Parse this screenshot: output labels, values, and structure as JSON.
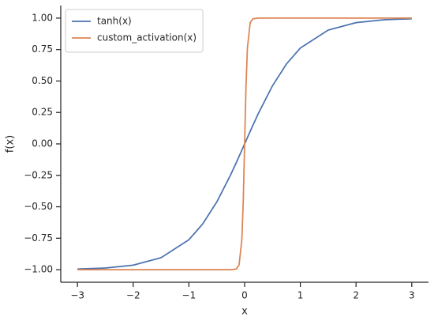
{
  "chart_data": {
    "type": "line",
    "x": [
      -3,
      -2.5,
      -2,
      -1.5,
      -1,
      -0.75,
      -0.5,
      -0.25,
      -0.15,
      -0.1,
      -0.05,
      -0.025,
      0,
      0.025,
      0.05,
      0.1,
      0.15,
      0.25,
      0.5,
      0.75,
      1,
      1.5,
      2,
      2.5,
      3
    ],
    "series": [
      {
        "name": "tanh(x)",
        "color": "#4c72b0",
        "values": [
          -0.995,
          -0.987,
          -0.964,
          -0.905,
          -0.762,
          -0.635,
          -0.462,
          -0.245,
          -0.149,
          -0.1,
          -0.05,
          -0.025,
          0,
          0.025,
          0.05,
          0.1,
          0.149,
          0.245,
          0.462,
          0.635,
          0.762,
          0.905,
          0.964,
          0.987,
          0.995
        ]
      },
      {
        "name": "custom_activation(x)",
        "color": "#dd8452",
        "values": [
          -1,
          -1,
          -1,
          -1,
          -1,
          -1,
          -1,
          -1,
          -0.995,
          -0.964,
          -0.762,
          -0.462,
          0,
          0.462,
          0.762,
          0.964,
          0.995,
          1,
          1,
          1,
          1,
          1,
          1,
          1,
          1
        ]
      }
    ],
    "xlabel": "x",
    "ylabel": "f(x)",
    "xlim": [
      -3.3,
      3.3
    ],
    "xticks": [
      {
        "value": -3,
        "label": "−3"
      },
      {
        "value": -2,
        "label": "−2"
      },
      {
        "value": -1,
        "label": "−1"
      },
      0,
      1,
      2,
      3
    ],
    "ylim": [
      -1.1,
      1.1
    ],
    "yticks": [
      {
        "value": -1,
        "label": "−1.00"
      },
      {
        "value": -0.75,
        "label": "−0.75"
      },
      {
        "value": -0.5,
        "label": "−0.50"
      },
      {
        "value": -0.25,
        "label": "−0.25"
      },
      {
        "value": 0,
        "label": "0.00"
      },
      {
        "value": 0.25,
        "label": "0.25"
      },
      {
        "value": 0.5,
        "label": "0.50"
      },
      {
        "value": 0.75,
        "label": "0.75"
      },
      {
        "value": 1,
        "label": "1.00"
      }
    ],
    "legend": "upper-left"
  }
}
